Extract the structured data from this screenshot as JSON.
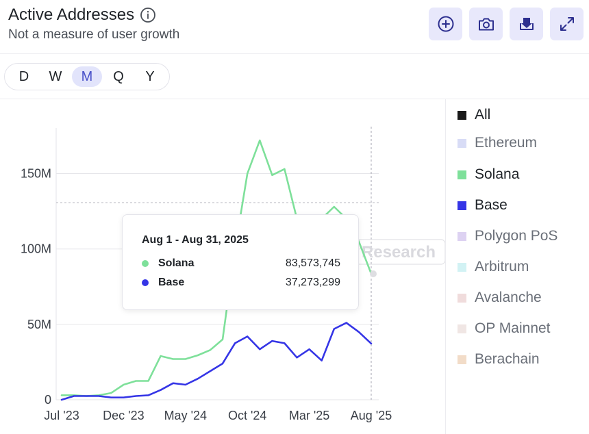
{
  "header": {
    "title": "Active Addresses",
    "subtitle": "Not a measure of user growth"
  },
  "icons": [
    "info-icon",
    "add-circle-icon",
    "camera-icon",
    "download-icon",
    "expand-icon"
  ],
  "periods": {
    "options": [
      "D",
      "W",
      "M",
      "Q",
      "Y"
    ],
    "selected": "M"
  },
  "watermark": "Research",
  "tooltip": {
    "date": "Aug 1 - Aug 31, 2025",
    "rows": [
      {
        "name": "Solana",
        "value": "83,573,745",
        "color": "#7ee09a"
      },
      {
        "name": "Base",
        "value": "37,273,299",
        "color": "#3535e6"
      }
    ]
  },
  "legend": [
    {
      "label": "All",
      "color": "#1a1a1a",
      "active": true
    },
    {
      "label": "Ethereum",
      "color": "#d8dcf6",
      "active": false
    },
    {
      "label": "Solana",
      "color": "#7ee09a",
      "active": true
    },
    {
      "label": "Base",
      "color": "#3535e6",
      "active": true
    },
    {
      "label": "Polygon PoS",
      "color": "#ddd2f2",
      "active": false
    },
    {
      "label": "Arbitrum",
      "color": "#d2f2f4",
      "active": false
    },
    {
      "label": "Avalanche",
      "color": "#f0dcdc",
      "active": false
    },
    {
      "label": "OP Mainnet",
      "color": "#f0e6e4",
      "active": false
    },
    {
      "label": "Berachain",
      "color": "#f2dcc8",
      "active": false
    }
  ],
  "colors": {
    "accent": "#e8e8fb",
    "solana": "#7ee09a",
    "base": "#3535e6"
  },
  "chart_data": {
    "type": "line",
    "x": [
      "Jul '23",
      "Aug '23",
      "Sep '23",
      "Oct '23",
      "Nov '23",
      "Dec '23",
      "Jan '24",
      "Feb '24",
      "Mar '24",
      "Apr '24",
      "May '24",
      "Jun '24",
      "Jul '24",
      "Aug '24",
      "Sep '24",
      "Oct '24",
      "Nov '24",
      "Dec '24",
      "Jan '25",
      "Feb '25",
      "Mar '25",
      "Apr '25",
      "May '25",
      "Jun '25",
      "Jul '25",
      "Aug '25"
    ],
    "x_tick_labels": [
      "Jul '23",
      "Dec '23",
      "May '24",
      "Oct '24",
      "Mar '25",
      "Aug '25"
    ],
    "y_ticks": [
      0,
      50000000,
      100000000,
      150000000
    ],
    "y_tick_labels": [
      "0",
      "50M",
      "100M",
      "150M"
    ],
    "ylim": [
      0,
      180000000
    ],
    "series": [
      {
        "name": "Solana",
        "values": [
          3000000,
          3000000,
          2500000,
          3000000,
          4500000,
          10000000,
          12500000,
          12500000,
          29000000,
          27000000,
          27000000,
          29500000,
          33000000,
          40000000,
          100000000,
          150000000,
          172000000,
          149000000,
          153000000,
          120000000,
          120000000,
          120000000,
          128000000,
          120000000,
          105000000,
          83573745
        ]
      },
      {
        "name": "Base",
        "values": [
          0,
          2500000,
          2500000,
          2500000,
          1500000,
          1500000,
          2500000,
          3000000,
          6500000,
          11000000,
          10000000,
          14000000,
          19000000,
          24000000,
          37500000,
          42000000,
          33500000,
          39000000,
          37500000,
          28000000,
          33500000,
          26000000,
          47000000,
          51000000,
          45000000,
          37273299
        ]
      }
    ],
    "hover_index": 25,
    "grid": true,
    "legend_position": "right"
  }
}
